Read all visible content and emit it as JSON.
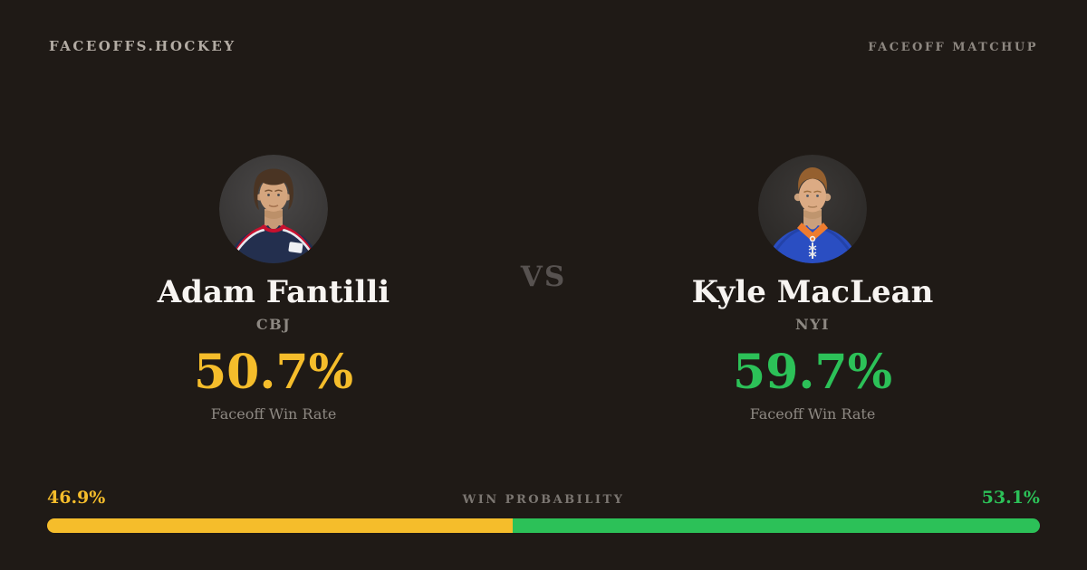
{
  "header": {
    "brand": "FACEOFFS.HOCKEY",
    "page_label": "FACEOFF MATCHUP"
  },
  "matchup": {
    "vs_label": "VS"
  },
  "players": [
    {
      "name": "Adam Fantilli",
      "team": "CBJ",
      "win_rate": "50.7%",
      "stat_label": "Faceoff Win Rate",
      "accent_color": "#f5bd2b",
      "avatar": "adam-fantilli-headshot"
    },
    {
      "name": "Kyle MacLean",
      "team": "NYI",
      "win_rate": "59.7%",
      "stat_label": "Faceoff Win Rate",
      "accent_color": "#2cc158",
      "avatar": "kyle-maclean-headshot"
    }
  ],
  "win_probability": {
    "label": "WIN PROBABILITY",
    "left_value": "46.9%",
    "right_value": "53.1%",
    "left_percent": 46.9,
    "right_percent": 53.1,
    "left_color": "#f5bd2b",
    "right_color": "#2cc158"
  },
  "colors": {
    "background": "#1f1a16",
    "name_text": "#f7f4f1",
    "muted_text": "#8d8882",
    "header_text": "#b3aca4"
  }
}
